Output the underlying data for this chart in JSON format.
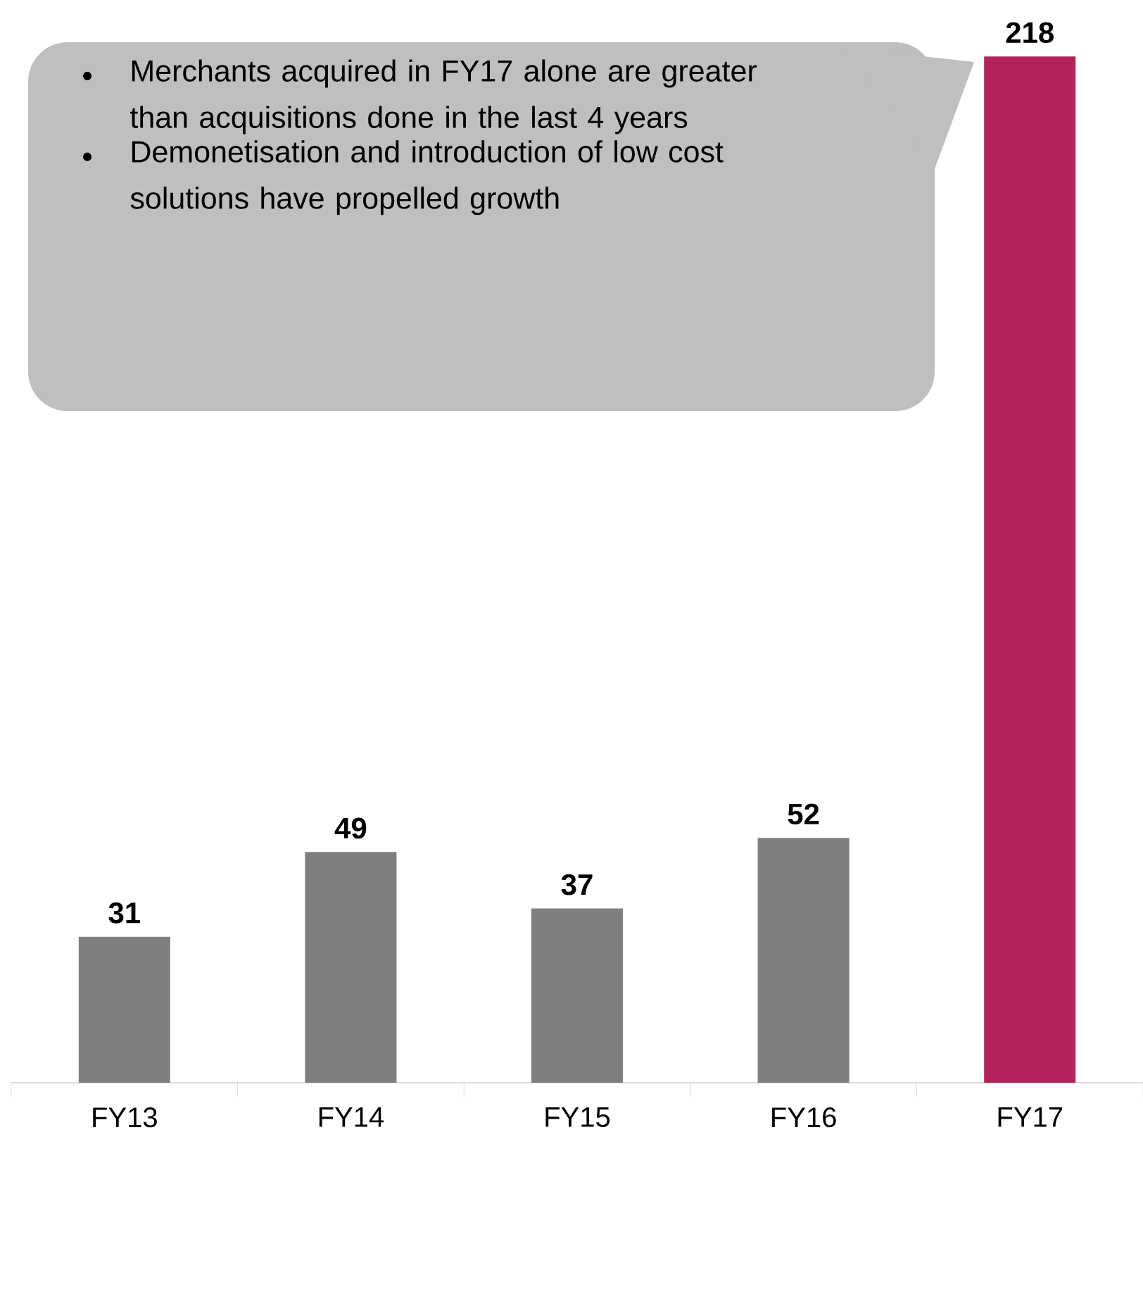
{
  "chart_data": {
    "type": "bar",
    "categories": [
      "FY13",
      "FY14",
      "FY15",
      "FY16",
      "FY17"
    ],
    "values": [
      31,
      49,
      37,
      52,
      218
    ],
    "colors": [
      "#7f7f7f",
      "#7f7f7f",
      "#7f7f7f",
      "#7f7f7f",
      "#b5215a"
    ],
    "data_labels": true,
    "annotations": [
      "Merchants acquired in FY17 alone are greater than acquisitions done in the last 4 years",
      "Demonetisation and introduction of low cost solutions have propelled growth"
    ]
  }
}
